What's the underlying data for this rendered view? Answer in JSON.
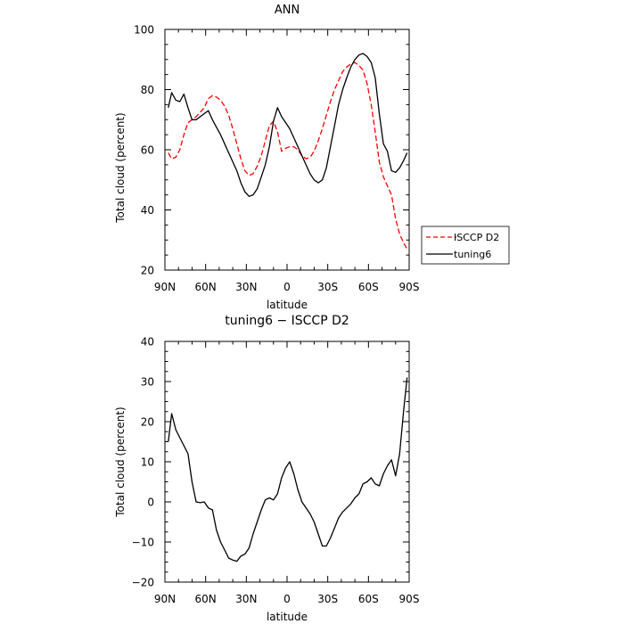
{
  "chart_data": [
    {
      "type": "line",
      "title": "ANN",
      "xlabel": "latitude",
      "ylabel": "Total cloud (percent)",
      "xlim": [
        90,
        -90
      ],
      "ylim": [
        20,
        100
      ],
      "x_tick_labels": [
        "90N",
        "60N",
        "30N",
        "0",
        "30S",
        "60S",
        "90S"
      ],
      "y_tick_labels": [
        "20",
        "40",
        "60",
        "80",
        "100"
      ],
      "legend": "outside-right",
      "series": [
        {
          "name": "ISCCP D2",
          "color": "#ff0000",
          "style": "dashed",
          "x": [
            87.5,
            85,
            82,
            79,
            76,
            73,
            70,
            67,
            64,
            61,
            58,
            55,
            52,
            49,
            46,
            43,
            40,
            37,
            34,
            31,
            28,
            25,
            22,
            19,
            16,
            13,
            10,
            7,
            4,
            1,
            -2,
            -5,
            -8,
            -11,
            -14,
            -17,
            -20,
            -23,
            -26,
            -29,
            -32,
            -35,
            -38,
            -41,
            -44,
            -47,
            -50,
            -53,
            -56,
            -59,
            -62,
            -65,
            -68,
            -71,
            -74,
            -77,
            -80,
            -83,
            -86,
            -88.5
          ],
          "y": [
            59,
            57,
            57.5,
            60,
            65,
            69,
            70,
            71,
            72.5,
            74,
            77,
            78,
            77.5,
            76.5,
            74.5,
            71.5,
            67,
            62,
            57,
            53,
            51.5,
            52,
            54.5,
            58,
            63,
            68,
            69.5,
            66,
            59.5,
            60.5,
            61,
            61,
            60,
            58,
            57,
            57.5,
            59.5,
            63,
            67,
            71.5,
            76,
            80,
            83,
            86,
            87.5,
            88.5,
            89,
            88,
            86.5,
            82,
            75,
            66,
            56,
            51,
            48,
            45,
            37,
            32,
            29,
            27
          ]
        },
        {
          "name": "tuning6",
          "color": "#000000",
          "style": "solid",
          "x": [
            87.5,
            85,
            82,
            79,
            76,
            73,
            70,
            67,
            64,
            61,
            58,
            55,
            52,
            49,
            46,
            43,
            40,
            37,
            34,
            31,
            28,
            25,
            22,
            19,
            16,
            13,
            10,
            7,
            4,
            1,
            -2,
            -5,
            -8,
            -11,
            -14,
            -17,
            -20,
            -23,
            -26,
            -29,
            -32,
            -35,
            -38,
            -41,
            -44,
            -47,
            -50,
            -53,
            -56,
            -59,
            -62,
            -65,
            -68,
            -71,
            -74,
            -77,
            -80,
            -83,
            -86,
            -88.5
          ],
          "y": [
            74,
            79,
            76.5,
            76,
            78.5,
            74,
            70,
            70,
            71,
            72,
            73,
            70,
            67.5,
            65,
            62,
            59,
            56,
            53,
            49,
            46,
            44.5,
            45,
            47,
            51,
            55,
            61,
            69.5,
            74,
            71,
            69,
            67,
            64,
            61,
            58,
            55,
            52,
            50,
            49,
            50,
            54,
            61,
            68,
            75,
            80,
            84,
            87.5,
            90,
            91.5,
            92,
            91,
            89,
            84,
            72,
            62,
            59.5,
            53,
            52.5,
            54,
            56.5,
            59
          ]
        }
      ]
    },
    {
      "type": "line",
      "title": "tuning6 − ISCCP D2",
      "xlabel": "latitude",
      "ylabel": "Total cloud (percent)",
      "xlim": [
        90,
        -90
      ],
      "ylim": [
        -20,
        40
      ],
      "x_tick_labels": [
        "90N",
        "60N",
        "30N",
        "0",
        "30S",
        "60S",
        "90S"
      ],
      "y_tick_labels": [
        "−20",
        "−10",
        "0",
        "10",
        "20",
        "30",
        "40"
      ],
      "series": [
        {
          "color": "#000000",
          "style": "solid",
          "x": [
            87.5,
            85,
            82,
            79,
            76,
            73,
            70,
            67,
            64,
            61,
            58,
            55,
            52,
            49,
            46,
            43,
            40,
            37,
            34,
            31,
            28,
            25,
            22,
            19,
            16,
            13,
            10,
            7,
            4,
            1,
            -2,
            -5,
            -8,
            -11,
            -14,
            -17,
            -20,
            -23,
            -26,
            -29,
            -32,
            -35,
            -38,
            -41,
            -44,
            -47,
            -50,
            -53,
            -56,
            -59,
            -62,
            -65,
            -68,
            -71,
            -74,
            -77,
            -80,
            -83,
            -86,
            -88.5
          ],
          "y": [
            15,
            22,
            18,
            16,
            14,
            12,
            5,
            0,
            -0.2,
            0,
            -1.5,
            -2,
            -7,
            -10,
            -12,
            -14,
            -14.5,
            -14.8,
            -13.5,
            -13,
            -11.5,
            -8,
            -5,
            -2,
            0.5,
            1,
            0.5,
            2,
            6,
            8.5,
            10,
            7,
            3,
            0,
            -1.5,
            -3,
            -5,
            -8,
            -11,
            -11,
            -9,
            -6.5,
            -4,
            -2.5,
            -1.5,
            -0.5,
            1,
            2,
            4.5,
            5,
            6,
            4.5,
            4,
            7,
            9,
            10.5,
            6.5,
            12,
            23,
            31
          ]
        }
      ]
    }
  ]
}
